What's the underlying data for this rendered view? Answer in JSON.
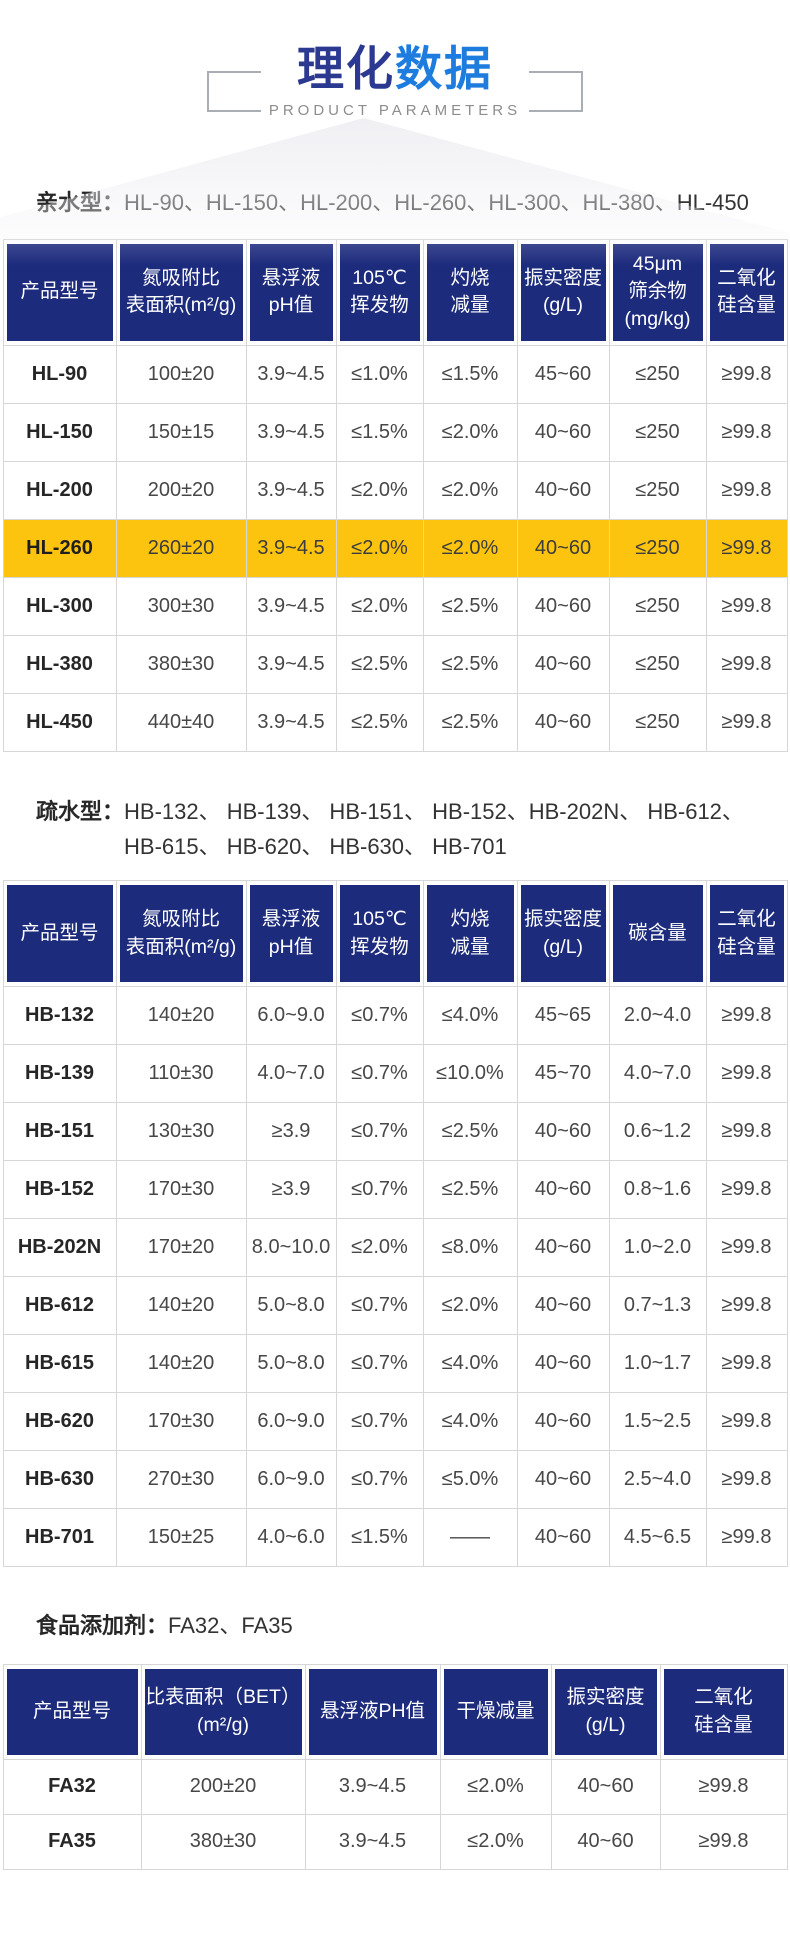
{
  "colors": {
    "header_bg": "#1d2b7d",
    "highlight": "#fcc40f",
    "title_primary": "#2b3990",
    "title_accent": "#1e7cdf"
  },
  "page": {
    "title_part1": "理化",
    "title_part2": "数据",
    "subtitle": "PRODUCT PARAMETERS"
  },
  "sections": [
    {
      "label": "亲水型：",
      "lines": [
        "HL-90、HL-150、HL-200、HL-260、HL-300、HL-380、HL-450"
      ]
    },
    {
      "label": "疏水型：",
      "lines": [
        "HB-132、 HB-139、 HB-151、 HB-152、HB-202N、 HB-612、",
        "HB-615、 HB-620、 HB-630、 HB-701"
      ]
    },
    {
      "label": "食品添加剂：",
      "lines": [
        "FA32、FA35"
      ]
    }
  ],
  "tables": [
    {
      "name": "hydrophilic",
      "columns": [
        {
          "lines": [
            "产品型号"
          ]
        },
        {
          "lines": [
            "氮吸附比",
            "表面积(m²/g)"
          ]
        },
        {
          "lines": [
            "悬浮液",
            "pH值"
          ]
        },
        {
          "lines": [
            "105℃",
            "挥发物"
          ]
        },
        {
          "lines": [
            "灼烧",
            "减量"
          ]
        },
        {
          "lines": [
            "振实密度",
            "(g/L)"
          ]
        },
        {
          "lines": [
            "45μm",
            "筛余物",
            "(mg/kg)"
          ]
        },
        {
          "lines": [
            "二氧化",
            "硅含量"
          ]
        }
      ],
      "rows": [
        {
          "cells": [
            "HL-90",
            "100±20",
            "3.9~4.5",
            "≤1.0%",
            "≤1.5%",
            "45~60",
            "≤250",
            "≥99.8"
          ]
        },
        {
          "cells": [
            "HL-150",
            "150±15",
            "3.9~4.5",
            "≤1.5%",
            "≤2.0%",
            "40~60",
            "≤250",
            "≥99.8"
          ]
        },
        {
          "cells": [
            "HL-200",
            "200±20",
            "3.9~4.5",
            "≤2.0%",
            "≤2.0%",
            "40~60",
            "≤250",
            "≥99.8"
          ]
        },
        {
          "cells": [
            "HL-260",
            "260±20",
            "3.9~4.5",
            "≤2.0%",
            "≤2.0%",
            "40~60",
            "≤250",
            "≥99.8"
          ],
          "highlight": true
        },
        {
          "cells": [
            "HL-300",
            "300±30",
            "3.9~4.5",
            "≤2.0%",
            "≤2.5%",
            "40~60",
            "≤250",
            "≥99.8"
          ]
        },
        {
          "cells": [
            "HL-380",
            "380±30",
            "3.9~4.5",
            "≤2.5%",
            "≤2.5%",
            "40~60",
            "≤250",
            "≥99.8"
          ]
        },
        {
          "cells": [
            "HL-450",
            "440±40",
            "3.9~4.5",
            "≤2.5%",
            "≤2.5%",
            "40~60",
            "≤250",
            "≥99.8"
          ]
        }
      ]
    },
    {
      "name": "hydrophobic",
      "columns": [
        {
          "lines": [
            "产品型号"
          ]
        },
        {
          "lines": [
            "氮吸附比",
            "表面积(m²/g)"
          ]
        },
        {
          "lines": [
            "悬浮液",
            "pH值"
          ]
        },
        {
          "lines": [
            "105℃",
            "挥发物"
          ]
        },
        {
          "lines": [
            "灼烧",
            "减量"
          ]
        },
        {
          "lines": [
            "振实密度",
            "(g/L)"
          ]
        },
        {
          "lines": [
            "碳含量"
          ]
        },
        {
          "lines": [
            "二氧化",
            "硅含量"
          ]
        }
      ],
      "rows": [
        {
          "cells": [
            "HB-132",
            "140±20",
            "6.0~9.0",
            "≤0.7%",
            "≤4.0%",
            "45~65",
            "2.0~4.0",
            "≥99.8"
          ]
        },
        {
          "cells": [
            "HB-139",
            "110±30",
            "4.0~7.0",
            "≤0.7%",
            "≤10.0%",
            "45~70",
            "4.0~7.0",
            "≥99.8"
          ]
        },
        {
          "cells": [
            "HB-151",
            "130±30",
            "≥3.9",
            "≤0.7%",
            "≤2.5%",
            "40~60",
            "0.6~1.2",
            "≥99.8"
          ]
        },
        {
          "cells": [
            "HB-152",
            "170±30",
            "≥3.9",
            "≤0.7%",
            "≤2.5%",
            "40~60",
            "0.8~1.6",
            "≥99.8"
          ]
        },
        {
          "cells": [
            "HB-202N",
            "170±20",
            "8.0~10.0",
            "≤2.0%",
            "≤8.0%",
            "40~60",
            "1.0~2.0",
            "≥99.8"
          ]
        },
        {
          "cells": [
            "HB-612",
            "140±20",
            "5.0~8.0",
            "≤0.7%",
            "≤2.0%",
            "40~60",
            "0.7~1.3",
            "≥99.8"
          ]
        },
        {
          "cells": [
            "HB-615",
            "140±20",
            "5.0~8.0",
            "≤0.7%",
            "≤4.0%",
            "40~60",
            "1.0~1.7",
            "≥99.8"
          ]
        },
        {
          "cells": [
            "HB-620",
            "170±30",
            "6.0~9.0",
            "≤0.7%",
            "≤4.0%",
            "40~60",
            "1.5~2.5",
            "≥99.8"
          ]
        },
        {
          "cells": [
            "HB-630",
            "270±30",
            "6.0~9.0",
            "≤0.7%",
            "≤5.0%",
            "40~60",
            "2.5~4.0",
            "≥99.8"
          ]
        },
        {
          "cells": [
            "HB-701",
            "150±25",
            "4.0~6.0",
            "≤1.5%",
            "——",
            "40~60",
            "4.5~6.5",
            "≥99.8"
          ]
        }
      ]
    },
    {
      "name": "food-additive",
      "columns": [
        {
          "lines": [
            "产品型号"
          ]
        },
        {
          "lines": [
            "比表面积（BET）",
            "(m²/g)"
          ]
        },
        {
          "lines": [
            "悬浮液PH值"
          ]
        },
        {
          "lines": [
            "干燥减量"
          ]
        },
        {
          "lines": [
            "振实密度",
            "(g/L)"
          ]
        },
        {
          "lines": [
            "二氧化",
            "硅含量"
          ]
        }
      ],
      "rows": [
        {
          "cells": [
            "FA32",
            "200±20",
            "3.9~4.5",
            "≤2.0%",
            "40~60",
            "≥99.8"
          ]
        },
        {
          "cells": [
            "FA35",
            "380±30",
            "3.9~4.5",
            "≤2.0%",
            "40~60",
            "≥99.8"
          ]
        }
      ]
    }
  ]
}
